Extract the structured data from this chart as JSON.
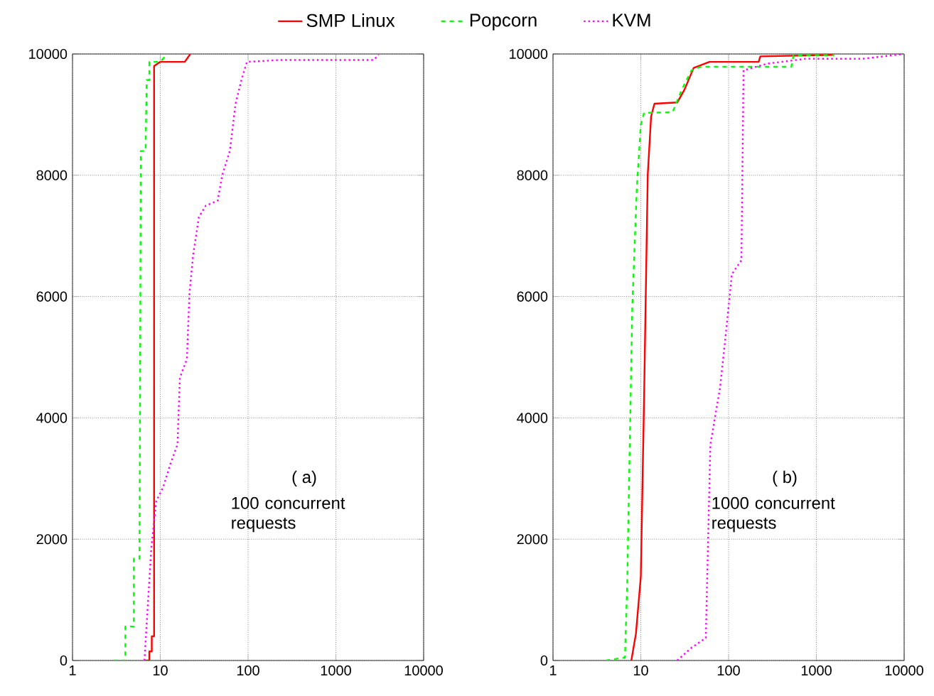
{
  "chart_data": [
    {
      "type": "line",
      "log": "x",
      "xlim": [
        1,
        10000
      ],
      "ylim": [
        0,
        10000
      ],
      "xticks": [
        1,
        10,
        100,
        1000,
        10000
      ],
      "yticks": [
        0,
        2000,
        4000,
        6000,
        8000,
        10000
      ],
      "grid": true,
      "legend": "top",
      "annotations": [
        "( a)",
        "100 concurrent requests"
      ],
      "series": [
        {
          "name": "SMP Linux",
          "color": "#ff0000",
          "line_style": "solid",
          "x": [
            6.5,
            7.5,
            7.5,
            8,
            8,
            8.5,
            8.5,
            10,
            19,
            22
          ],
          "values": [
            0,
            0,
            150,
            150,
            400,
            400,
            9800,
            9870,
            9870,
            10000
          ]
        },
        {
          "name": "Popcorn",
          "color": "#00ff00",
          "line_style": "dashed",
          "x": [
            2.9,
            4,
            4,
            5,
            5,
            5.8,
            6,
            6.8,
            7,
            7.5,
            7.5,
            10,
            12
          ],
          "values": [
            0,
            0,
            560,
            560,
            1680,
            1680,
            8400,
            8400,
            9570,
            9570,
            9870,
            9870,
            10000
          ]
        },
        {
          "name": "KVM",
          "color": "#ff00ff",
          "line_style": "dotted",
          "x": [
            6.6,
            7.9,
            9,
            10.8,
            13.1,
            15.7,
            16.7,
            20.1,
            21.5,
            23.7,
            27.5,
            33,
            45,
            51,
            62,
            72,
            84,
            97,
            225,
            2700,
            3070
          ],
          "values": [
            0,
            1850,
            2630,
            2860,
            3250,
            3560,
            4660,
            4970,
            6060,
            6690,
            7310,
            7500,
            7580,
            8010,
            8400,
            9180,
            9570,
            9870,
            9900,
            9900,
            9985
          ]
        }
      ]
    },
    {
      "type": "line",
      "log": "x",
      "xlim": [
        1,
        10000
      ],
      "ylim": [
        0,
        10000
      ],
      "xticks": [
        1,
        10,
        100,
        1000,
        10000
      ],
      "yticks": [
        0,
        2000,
        4000,
        6000,
        8000,
        10000
      ],
      "grid": true,
      "annotations": [
        "( b)",
        "1000 concurrent requests"
      ],
      "series": [
        {
          "color": "#ff0000",
          "line_style": "solid",
          "x": [
            7.8,
            8.8,
            10,
            10.9,
            12,
            13.1,
            14.3,
            26,
            31.4,
            40,
            60.5,
            220,
            230,
            1580
          ],
          "values": [
            0,
            440,
            1380,
            4340,
            8010,
            8970,
            9180,
            9200,
            9410,
            9770,
            9870,
            9870,
            9960,
            9985
          ]
        },
        {
          "color": "#00ff00",
          "line_style": "dashed",
          "x": [
            4,
            6.6,
            7,
            8,
            9,
            10,
            10.9,
            23,
            29.5,
            37.8,
            48.5,
            518,
            550,
            1580
          ],
          "values": [
            0,
            50,
            1260,
            5830,
            7780,
            8830,
            9030,
            9040,
            9420,
            9730,
            9790,
            9790,
            9980,
            9980
          ]
        },
        {
          "color": "#ff00ff",
          "line_style": "dotted",
          "x": [
            26,
            37.8,
            55,
            62,
            80,
            92.6,
            109,
            140,
            148,
            275,
            745,
            3330,
            10000
          ],
          "values": [
            0,
            210,
            370,
            3560,
            4500,
            5360,
            6370,
            6600,
            9730,
            9840,
            9920,
            9920,
            10000
          ]
        }
      ]
    }
  ]
}
